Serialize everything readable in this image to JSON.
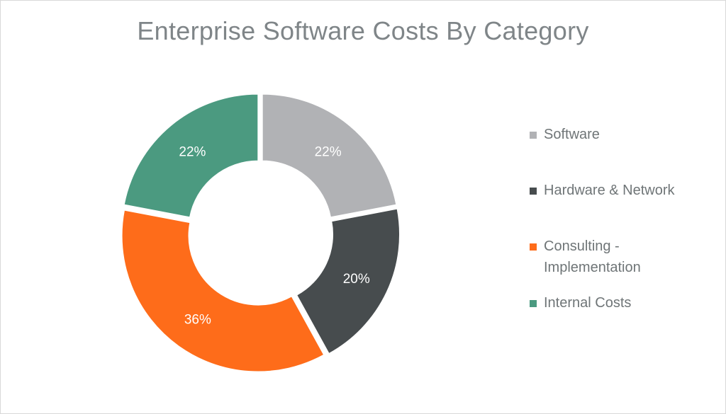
{
  "chart_data": {
    "type": "pie",
    "title": "Enterprise Software Costs By Category",
    "series": [
      {
        "name": "Software",
        "value": 22,
        "label": "22%",
        "color": "#b1b2b5"
      },
      {
        "name": "Hardware & Network",
        "value": 20,
        "label": "20%",
        "color": "#474c4e"
      },
      {
        "name": "Consulting - Implementation",
        "value": 36,
        "label": "36%",
        "color": "#fe6c1a"
      },
      {
        "name": "Internal Costs",
        "value": 22,
        "label": "22%",
        "color": "#4b9a80"
      }
    ],
    "legend_position": "right",
    "unit": "%"
  }
}
